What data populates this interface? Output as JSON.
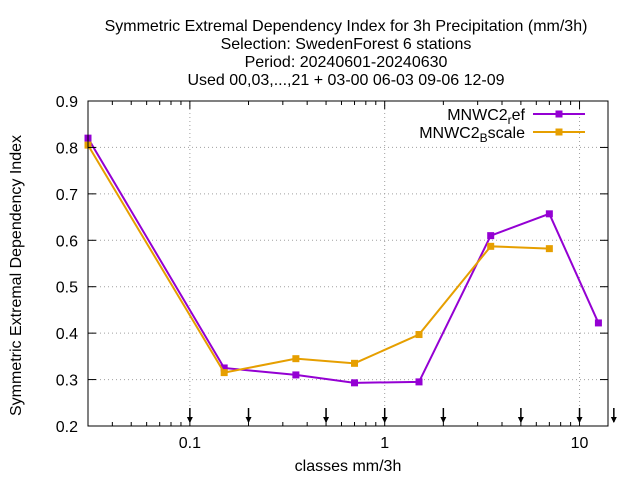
{
  "chart_data": {
    "type": "line",
    "title_lines": [
      "Symmetric Extremal Dependency Index  for 3h Precipitation (mm/3h)",
      "Selection: SwedenForest      6 stations",
      "Period: 20240601-20240630",
      "Used 00,03,...,21 + 03-00 06-03 09-06 12-09"
    ],
    "xlabel": "classes mm/3h",
    "ylabel": "Symmetric Extremal Dependency Index",
    "xscale": "log",
    "xlim": [
      0.03,
      14
    ],
    "ylim": [
      0.2,
      0.9
    ],
    "x_ticks": [
      0.1,
      1,
      10
    ],
    "x_tick_labels": [
      "0.1",
      "1",
      "10"
    ],
    "y_ticks": [
      0.2,
      0.3,
      0.4,
      0.5,
      0.6,
      0.7,
      0.8,
      0.9
    ],
    "y_tick_labels": [
      "0.2",
      "0.3",
      "0.4",
      "0.5",
      "0.6",
      "0.7",
      "0.8",
      "0.9"
    ],
    "grid": true,
    "legend_position": "top-right",
    "threshold_arrows_x": [
      0.1,
      0.2,
      0.5,
      1,
      2,
      5,
      10,
      15
    ],
    "series": [
      {
        "name_base": "MNWC2",
        "name_sub": "r",
        "name_rest": "ef",
        "color": "#9400d3",
        "x": [
          0.03,
          0.15,
          0.35,
          0.7,
          1.5,
          3.5,
          7,
          12.5
        ],
        "values": [
          0.82,
          0.325,
          0.31,
          0.293,
          0.295,
          0.61,
          0.657,
          0.422
        ]
      },
      {
        "name_base": "MNWC2",
        "name_sub": "B",
        "name_rest": "scale",
        "color": "#e69f00",
        "x": [
          0.03,
          0.15,
          0.35,
          0.7,
          1.5,
          3.5,
          7
        ],
        "values": [
          0.805,
          0.315,
          0.345,
          0.335,
          0.397,
          0.587,
          0.582
        ]
      }
    ]
  }
}
